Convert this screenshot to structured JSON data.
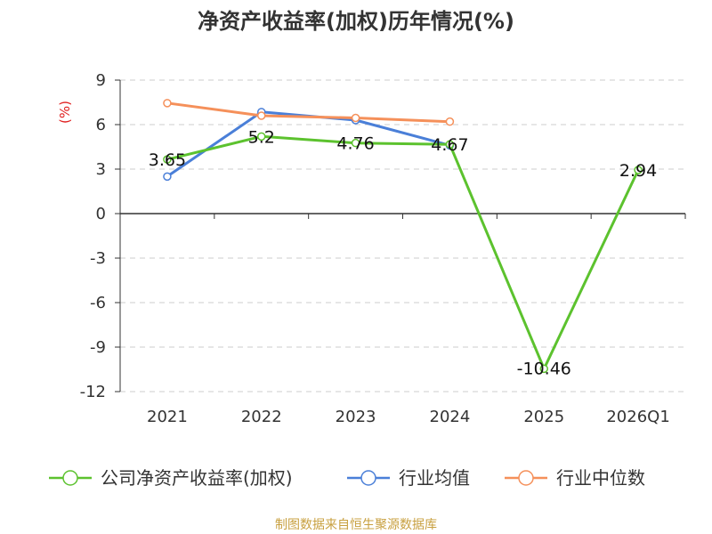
{
  "chart_data": {
    "type": "line",
    "title": "净资产收益率(加权)历年情况(%)",
    "ylabel": "(%)",
    "categories": [
      "2021",
      "2022",
      "2023",
      "2024",
      "2025",
      "2026Q1"
    ],
    "ylim": [
      -12,
      9
    ],
    "yticks": [
      9,
      6,
      3,
      0,
      -3,
      -6,
      -9,
      -12
    ],
    "grid": true,
    "legend_position": "bottom",
    "series": [
      {
        "name": "公司净资产收益率(加权)",
        "color": "#5cc22e",
        "values": [
          3.65,
          5.2,
          4.76,
          4.67,
          -10.46,
          2.94
        ],
        "labels": [
          "3.65",
          "5.2",
          "4.76",
          "4.67",
          "-10.46",
          "2.94"
        ]
      },
      {
        "name": "行业均值",
        "color": "#4a7fd8",
        "values": [
          2.5,
          6.85,
          6.3,
          4.6,
          null,
          null
        ]
      },
      {
        "name": "行业中位数",
        "color": "#f5905a",
        "values": [
          7.45,
          6.6,
          6.45,
          6.2,
          null,
          null
        ]
      }
    ]
  },
  "source": "制图数据来自恒生聚源数据库"
}
